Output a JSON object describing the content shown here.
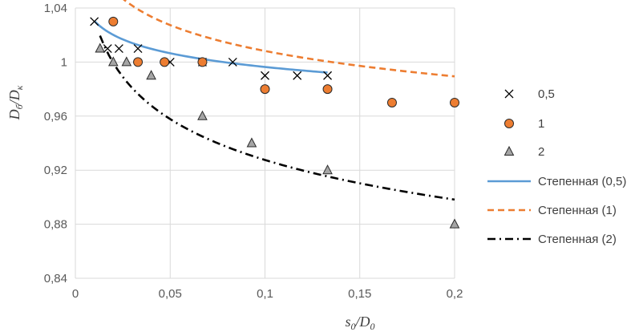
{
  "chart_data": {
    "type": "scatter",
    "xlabel": {
      "main": "s",
      "sub1": "0",
      "sep": "/D",
      "sub2": "0"
    },
    "ylabel": {
      "main": "D",
      "sub1": "б",
      "sep": "/D",
      "sub2": "к"
    },
    "xlim": [
      0,
      0.2
    ],
    "ylim": [
      0.84,
      1.04
    ],
    "x_ticks": [
      0,
      0.05,
      0.1,
      0.15,
      0.2
    ],
    "x_tick_labels": [
      "0",
      "0,05",
      "0,1",
      "0,15",
      "0,2"
    ],
    "y_ticks": [
      0.84,
      0.88,
      0.92,
      0.96,
      1.0,
      1.04
    ],
    "y_tick_labels": [
      "0,84",
      "0,88",
      "0,92",
      "0,96",
      "1",
      "1,04"
    ],
    "grid": true,
    "legend_position": "right",
    "series": [
      {
        "name": "0,5",
        "marker": "x",
        "color": "#000000",
        "points": [
          [
            0.01,
            1.03
          ],
          [
            0.017,
            1.01
          ],
          [
            0.023,
            1.01
          ],
          [
            0.033,
            1.01
          ],
          [
            0.05,
            1.0
          ],
          [
            0.067,
            1.0
          ],
          [
            0.083,
            1.0
          ],
          [
            0.1,
            0.99
          ],
          [
            0.117,
            0.99
          ],
          [
            0.133,
            0.99
          ]
        ]
      },
      {
        "name": "1",
        "marker": "circle",
        "color": "#ED7D31",
        "points": [
          [
            0.02,
            1.03
          ],
          [
            0.033,
            1.0
          ],
          [
            0.047,
            1.0
          ],
          [
            0.067,
            1.0
          ],
          [
            0.1,
            0.98
          ],
          [
            0.133,
            0.98
          ],
          [
            0.167,
            0.97
          ],
          [
            0.2,
            0.97
          ]
        ]
      },
      {
        "name": "2",
        "marker": "triangle",
        "color": "#A5A5A5",
        "points": [
          [
            0.013,
            1.01
          ],
          [
            0.02,
            1.0
          ],
          [
            0.027,
            1.0
          ],
          [
            0.04,
            0.99
          ],
          [
            0.067,
            0.96
          ],
          [
            0.093,
            0.94
          ],
          [
            0.133,
            0.92
          ],
          [
            0.2,
            0.88
          ]
        ]
      }
    ],
    "trendlines": [
      {
        "name": "Степенная (0,5)",
        "style": "solid",
        "color": "#5B9BD5",
        "x_range": [
          0.01,
          0.133
        ],
        "a": 0.9634,
        "b": -0.01462
      },
      {
        "name": "Степенная (1)",
        "style": "dashed",
        "color": "#ED7D31",
        "x_range": [
          0.02,
          0.2
        ],
        "a": 0.9471,
        "b": -0.02716
      },
      {
        "name": "Степенная (2)",
        "style": "dashdot",
        "color": "#000000",
        "x_range": [
          0.013,
          0.2
        ],
        "a": 0.8337,
        "b": -0.04633
      }
    ]
  }
}
